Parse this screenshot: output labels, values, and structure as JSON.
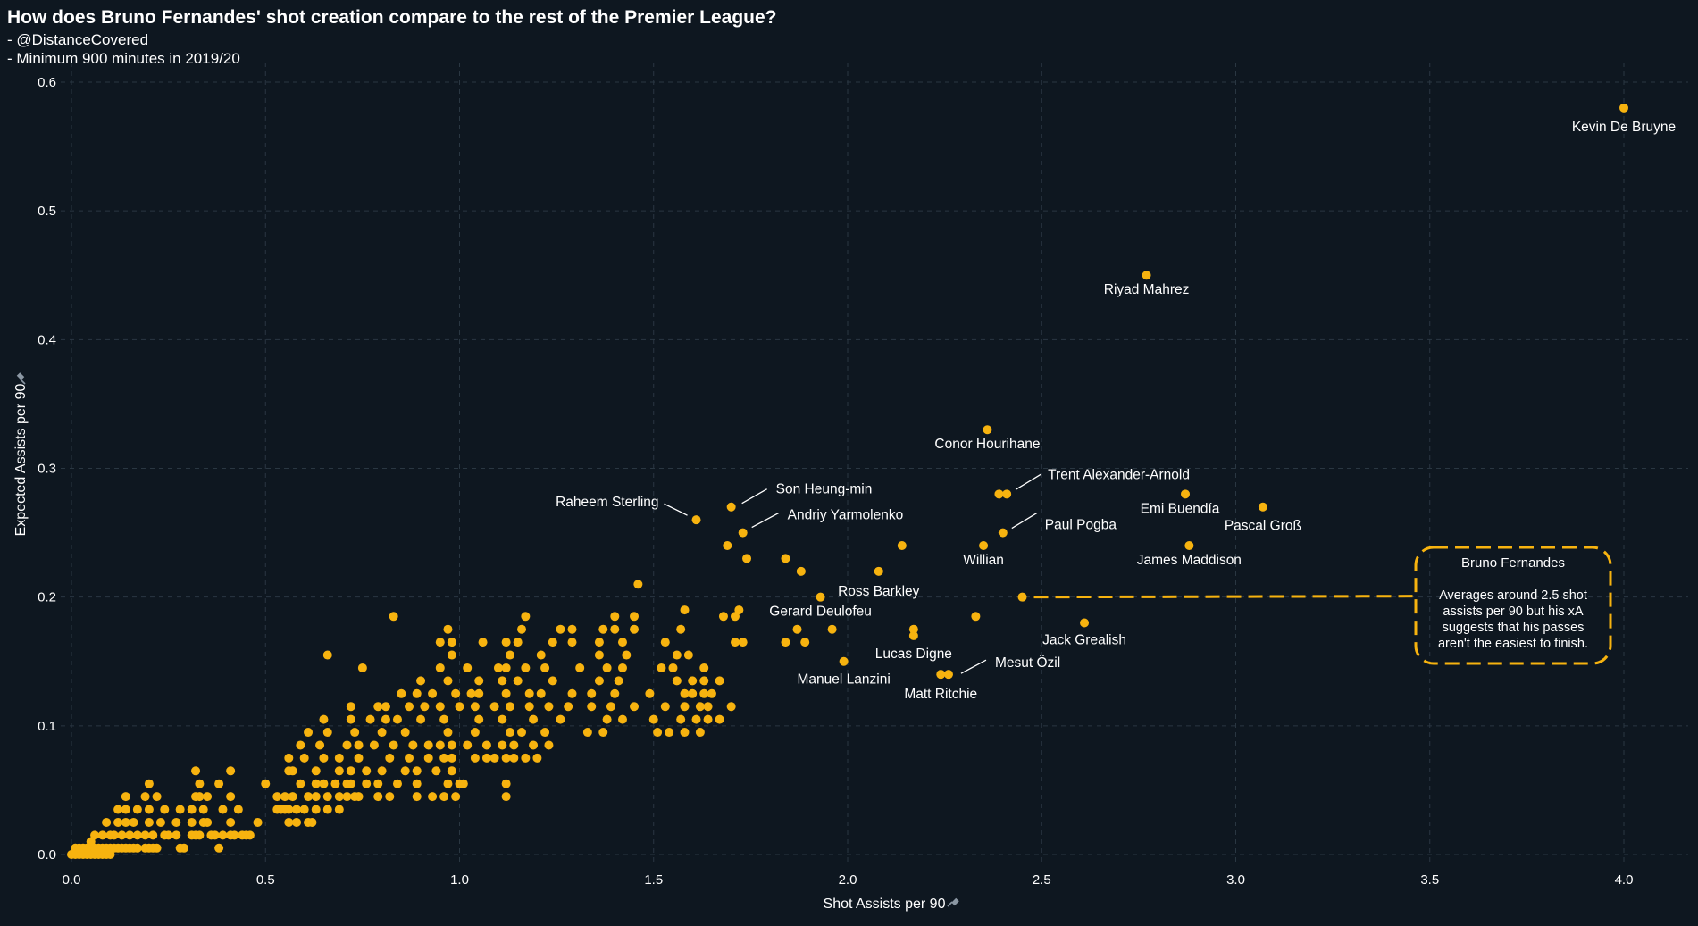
{
  "header": {
    "title": "How does Bruno Fernandes' shot creation compare to the rest of the Premier League?",
    "subtitle_1": "- @DistanceCovered",
    "subtitle_2": "- Minimum 900 minutes in 2019/20"
  },
  "colors": {
    "background": "#0e1720",
    "point": "#f7b30f",
    "grid": "#2a3742",
    "annotation": "#f7b30f",
    "text": "#ffffff"
  },
  "chart_data": {
    "type": "scatter",
    "title": "How does Bruno Fernandes' shot creation compare to the rest of the Premier League?",
    "xlabel": "Shot Assists per 90",
    "ylabel": "Expected Assists per 90",
    "xlim": [
      -0.03,
      4.2
    ],
    "ylim": [
      -0.01,
      0.62
    ],
    "x_ticks": [
      0.0,
      0.5,
      1.0,
      1.5,
      2.0,
      2.5,
      3.0,
      3.5,
      4.0
    ],
    "x_tick_labels": [
      "0.0",
      "0.5",
      "1.0",
      "1.5",
      "2.0",
      "2.5",
      "3.0",
      "3.5",
      "4.0"
    ],
    "y_ticks": [
      0.0,
      0.1,
      0.2,
      0.3,
      0.4,
      0.5,
      0.6
    ],
    "y_tick_labels": [
      "0.0",
      "0.1",
      "0.2",
      "0.3",
      "0.4",
      "0.5",
      "0.6"
    ],
    "grid": true,
    "labeled_points": [
      {
        "name": "Kevin De Bruyne",
        "x": 4.0,
        "y": 0.58
      },
      {
        "name": "Riyad Mahrez",
        "x": 2.77,
        "y": 0.45
      },
      {
        "name": "Conor Hourihane",
        "x": 2.36,
        "y": 0.33
      },
      {
        "name": "Trent Alexander-Arnold",
        "x": 2.41,
        "y": 0.28
      },
      {
        "name": "Paul Pogba",
        "x": 2.4,
        "y": 0.25
      },
      {
        "name": "Willian",
        "x": 2.35,
        "y": 0.24
      },
      {
        "name": "Emi Buendía",
        "x": 2.87,
        "y": 0.28
      },
      {
        "name": "Pascal Groß",
        "x": 3.07,
        "y": 0.27
      },
      {
        "name": "James Maddison",
        "x": 2.88,
        "y": 0.24
      },
      {
        "name": "Bruno Fernandes",
        "x": 2.45,
        "y": 0.2
      },
      {
        "name": "Jack Grealish",
        "x": 2.61,
        "y": 0.18
      },
      {
        "name": "Son Heung-min",
        "x": 1.7,
        "y": 0.27
      },
      {
        "name": "Andriy Yarmolenko",
        "x": 1.73,
        "y": 0.25
      },
      {
        "name": "Raheem Sterling",
        "x": 1.61,
        "y": 0.26
      },
      {
        "name": "Ross Barkley",
        "x": 2.08,
        "y": 0.22
      },
      {
        "name": "Gerard Deulofeu",
        "x": 1.93,
        "y": 0.2
      },
      {
        "name": "Lucas Digne",
        "x": 2.17,
        "y": 0.17
      },
      {
        "name": "Manuel Lanzini",
        "x": 1.99,
        "y": 0.15
      },
      {
        "name": "Mesut Özil",
        "x": 2.26,
        "y": 0.14
      },
      {
        "name": "Matt Ritchie",
        "x": 2.24,
        "y": 0.14
      }
    ],
    "other_points": [
      [
        0.0,
        0.0
      ],
      [
        0.01,
        0.0
      ],
      [
        0.02,
        0.0
      ],
      [
        0.03,
        0.0
      ],
      [
        0.04,
        0.0
      ],
      [
        0.05,
        0.0
      ],
      [
        0.06,
        0.0
      ],
      [
        0.07,
        0.0
      ],
      [
        0.08,
        0.0
      ],
      [
        0.09,
        0.0
      ],
      [
        0.1,
        0.0
      ],
      [
        0.01,
        0.005
      ],
      [
        0.02,
        0.005
      ],
      [
        0.03,
        0.005
      ],
      [
        0.04,
        0.005
      ],
      [
        0.06,
        0.005
      ],
      [
        0.07,
        0.005
      ],
      [
        0.08,
        0.005
      ],
      [
        0.09,
        0.005
      ],
      [
        0.1,
        0.005
      ],
      [
        0.11,
        0.005
      ],
      [
        0.12,
        0.005
      ],
      [
        0.13,
        0.005
      ],
      [
        0.14,
        0.005
      ],
      [
        0.15,
        0.005
      ],
      [
        0.16,
        0.005
      ],
      [
        0.17,
        0.005
      ],
      [
        0.19,
        0.005
      ],
      [
        0.2,
        0.005
      ],
      [
        0.21,
        0.005
      ],
      [
        0.22,
        0.005
      ],
      [
        0.28,
        0.005
      ],
      [
        0.29,
        0.005
      ],
      [
        0.38,
        0.005
      ],
      [
        0.05,
        0.01
      ],
      [
        0.06,
        0.015
      ],
      [
        0.08,
        0.015
      ],
      [
        0.1,
        0.015
      ],
      [
        0.11,
        0.015
      ],
      [
        0.13,
        0.015
      ],
      [
        0.15,
        0.015
      ],
      [
        0.17,
        0.015
      ],
      [
        0.19,
        0.015
      ],
      [
        0.21,
        0.015
      ],
      [
        0.24,
        0.015
      ],
      [
        0.25,
        0.015
      ],
      [
        0.27,
        0.015
      ],
      [
        0.31,
        0.015
      ],
      [
        0.32,
        0.015
      ],
      [
        0.33,
        0.015
      ],
      [
        0.36,
        0.015
      ],
      [
        0.37,
        0.015
      ],
      [
        0.39,
        0.015
      ],
      [
        0.41,
        0.015
      ],
      [
        0.42,
        0.015
      ],
      [
        0.44,
        0.015
      ],
      [
        0.45,
        0.015
      ],
      [
        0.46,
        0.015
      ],
      [
        0.09,
        0.025
      ],
      [
        0.12,
        0.025
      ],
      [
        0.14,
        0.025
      ],
      [
        0.16,
        0.025
      ],
      [
        0.2,
        0.025
      ],
      [
        0.23,
        0.025
      ],
      [
        0.27,
        0.025
      ],
      [
        0.31,
        0.025
      ],
      [
        0.34,
        0.025
      ],
      [
        0.35,
        0.025
      ],
      [
        0.41,
        0.025
      ],
      [
        0.48,
        0.025
      ],
      [
        0.56,
        0.025
      ],
      [
        0.58,
        0.025
      ],
      [
        0.61,
        0.025
      ],
      [
        0.62,
        0.025
      ],
      [
        0.12,
        0.035
      ],
      [
        0.14,
        0.035
      ],
      [
        0.17,
        0.035
      ],
      [
        0.2,
        0.035
      ],
      [
        0.24,
        0.035
      ],
      [
        0.28,
        0.035
      ],
      [
        0.31,
        0.035
      ],
      [
        0.34,
        0.035
      ],
      [
        0.39,
        0.035
      ],
      [
        0.43,
        0.035
      ],
      [
        0.53,
        0.035
      ],
      [
        0.54,
        0.035
      ],
      [
        0.55,
        0.035
      ],
      [
        0.56,
        0.035
      ],
      [
        0.58,
        0.035
      ],
      [
        0.6,
        0.035
      ],
      [
        0.63,
        0.035
      ],
      [
        0.66,
        0.035
      ],
      [
        0.69,
        0.035
      ],
      [
        0.14,
        0.045
      ],
      [
        0.19,
        0.045
      ],
      [
        0.22,
        0.045
      ],
      [
        0.32,
        0.045
      ],
      [
        0.33,
        0.045
      ],
      [
        0.35,
        0.045
      ],
      [
        0.41,
        0.045
      ],
      [
        0.53,
        0.045
      ],
      [
        0.55,
        0.045
      ],
      [
        0.57,
        0.045
      ],
      [
        0.61,
        0.045
      ],
      [
        0.63,
        0.045
      ],
      [
        0.66,
        0.045
      ],
      [
        0.69,
        0.045
      ],
      [
        0.71,
        0.045
      ],
      [
        0.73,
        0.045
      ],
      [
        0.74,
        0.045
      ],
      [
        0.79,
        0.045
      ],
      [
        0.82,
        0.045
      ],
      [
        0.89,
        0.045
      ],
      [
        0.93,
        0.045
      ],
      [
        0.96,
        0.045
      ],
      [
        0.99,
        0.045
      ],
      [
        1.12,
        0.045
      ],
      [
        0.2,
        0.055
      ],
      [
        0.33,
        0.055
      ],
      [
        0.38,
        0.055
      ],
      [
        0.5,
        0.055
      ],
      [
        0.59,
        0.055
      ],
      [
        0.63,
        0.055
      ],
      [
        0.65,
        0.055
      ],
      [
        0.68,
        0.055
      ],
      [
        0.71,
        0.055
      ],
      [
        0.72,
        0.055
      ],
      [
        0.76,
        0.055
      ],
      [
        0.79,
        0.055
      ],
      [
        0.84,
        0.055
      ],
      [
        0.89,
        0.055
      ],
      [
        0.97,
        0.055
      ],
      [
        1.0,
        0.055
      ],
      [
        1.01,
        0.055
      ],
      [
        1.12,
        0.055
      ],
      [
        0.32,
        0.065
      ],
      [
        0.41,
        0.065
      ],
      [
        0.56,
        0.065
      ],
      [
        0.57,
        0.065
      ],
      [
        0.63,
        0.065
      ],
      [
        0.69,
        0.065
      ],
      [
        0.72,
        0.065
      ],
      [
        0.76,
        0.065
      ],
      [
        0.8,
        0.065
      ],
      [
        0.86,
        0.065
      ],
      [
        0.89,
        0.065
      ],
      [
        0.94,
        0.065
      ],
      [
        0.98,
        0.065
      ],
      [
        0.56,
        0.075
      ],
      [
        0.6,
        0.075
      ],
      [
        0.65,
        0.075
      ],
      [
        0.69,
        0.075
      ],
      [
        0.74,
        0.075
      ],
      [
        0.82,
        0.075
      ],
      [
        0.87,
        0.075
      ],
      [
        0.92,
        0.075
      ],
      [
        0.96,
        0.075
      ],
      [
        0.98,
        0.075
      ],
      [
        1.04,
        0.075
      ],
      [
        1.07,
        0.075
      ],
      [
        1.09,
        0.075
      ],
      [
        1.12,
        0.075
      ],
      [
        1.14,
        0.075
      ],
      [
        1.17,
        0.075
      ],
      [
        1.2,
        0.075
      ],
      [
        0.59,
        0.085
      ],
      [
        0.64,
        0.085
      ],
      [
        0.71,
        0.085
      ],
      [
        0.74,
        0.085
      ],
      [
        0.78,
        0.085
      ],
      [
        0.83,
        0.085
      ],
      [
        0.88,
        0.085
      ],
      [
        0.92,
        0.085
      ],
      [
        0.95,
        0.085
      ],
      [
        0.98,
        0.085
      ],
      [
        1.02,
        0.085
      ],
      [
        1.07,
        0.085
      ],
      [
        1.11,
        0.085
      ],
      [
        1.14,
        0.085
      ],
      [
        1.19,
        0.085
      ],
      [
        1.23,
        0.085
      ],
      [
        0.61,
        0.095
      ],
      [
        0.66,
        0.095
      ],
      [
        0.73,
        0.095
      ],
      [
        0.8,
        0.095
      ],
      [
        0.86,
        0.095
      ],
      [
        0.97,
        0.095
      ],
      [
        1.04,
        0.095
      ],
      [
        1.13,
        0.095
      ],
      [
        1.16,
        0.095
      ],
      [
        1.22,
        0.095
      ],
      [
        1.33,
        0.095
      ],
      [
        1.37,
        0.095
      ],
      [
        1.51,
        0.095
      ],
      [
        1.54,
        0.095
      ],
      [
        1.58,
        0.095
      ],
      [
        1.62,
        0.095
      ],
      [
        0.65,
        0.105
      ],
      [
        0.72,
        0.105
      ],
      [
        0.77,
        0.105
      ],
      [
        0.81,
        0.105
      ],
      [
        0.84,
        0.105
      ],
      [
        0.9,
        0.105
      ],
      [
        0.96,
        0.105
      ],
      [
        1.05,
        0.105
      ],
      [
        1.11,
        0.105
      ],
      [
        1.19,
        0.105
      ],
      [
        1.26,
        0.105
      ],
      [
        1.38,
        0.105
      ],
      [
        1.42,
        0.105
      ],
      [
        1.5,
        0.105
      ],
      [
        1.57,
        0.105
      ],
      [
        1.61,
        0.105
      ],
      [
        1.64,
        0.105
      ],
      [
        1.67,
        0.105
      ],
      [
        0.72,
        0.115
      ],
      [
        0.79,
        0.115
      ],
      [
        0.81,
        0.115
      ],
      [
        0.87,
        0.115
      ],
      [
        0.91,
        0.115
      ],
      [
        0.95,
        0.115
      ],
      [
        1.0,
        0.115
      ],
      [
        1.04,
        0.115
      ],
      [
        1.09,
        0.115
      ],
      [
        1.13,
        0.115
      ],
      [
        1.18,
        0.115
      ],
      [
        1.23,
        0.115
      ],
      [
        1.28,
        0.115
      ],
      [
        1.34,
        0.115
      ],
      [
        1.39,
        0.115
      ],
      [
        1.45,
        0.115
      ],
      [
        1.53,
        0.115
      ],
      [
        1.58,
        0.115
      ],
      [
        1.62,
        0.115
      ],
      [
        1.64,
        0.115
      ],
      [
        1.7,
        0.115
      ],
      [
        0.85,
        0.125
      ],
      [
        0.89,
        0.125
      ],
      [
        0.93,
        0.125
      ],
      [
        0.99,
        0.125
      ],
      [
        1.03,
        0.125
      ],
      [
        1.05,
        0.125
      ],
      [
        1.12,
        0.125
      ],
      [
        1.18,
        0.125
      ],
      [
        1.21,
        0.125
      ],
      [
        1.29,
        0.125
      ],
      [
        1.34,
        0.125
      ],
      [
        1.4,
        0.125
      ],
      [
        1.49,
        0.125
      ],
      [
        1.58,
        0.125
      ],
      [
        1.6,
        0.125
      ],
      [
        1.63,
        0.125
      ],
      [
        1.65,
        0.125
      ],
      [
        0.9,
        0.135
      ],
      [
        0.97,
        0.135
      ],
      [
        1.05,
        0.135
      ],
      [
        1.11,
        0.135
      ],
      [
        1.15,
        0.135
      ],
      [
        1.24,
        0.135
      ],
      [
        1.36,
        0.135
      ],
      [
        1.41,
        0.135
      ],
      [
        1.56,
        0.135
      ],
      [
        1.6,
        0.135
      ],
      [
        1.63,
        0.135
      ],
      [
        1.67,
        0.135
      ],
      [
        0.75,
        0.145
      ],
      [
        0.95,
        0.145
      ],
      [
        1.02,
        0.145
      ],
      [
        1.1,
        0.145
      ],
      [
        1.12,
        0.145
      ],
      [
        1.17,
        0.145
      ],
      [
        1.22,
        0.145
      ],
      [
        1.31,
        0.145
      ],
      [
        1.38,
        0.145
      ],
      [
        1.42,
        0.145
      ],
      [
        1.52,
        0.145
      ],
      [
        1.55,
        0.145
      ],
      [
        1.63,
        0.145
      ],
      [
        0.66,
        0.155
      ],
      [
        0.98,
        0.155
      ],
      [
        1.13,
        0.155
      ],
      [
        1.21,
        0.155
      ],
      [
        1.36,
        0.155
      ],
      [
        1.43,
        0.155
      ],
      [
        1.56,
        0.155
      ],
      [
        1.59,
        0.155
      ],
      [
        0.95,
        0.165
      ],
      [
        0.98,
        0.165
      ],
      [
        1.06,
        0.165
      ],
      [
        1.12,
        0.165
      ],
      [
        1.15,
        0.165
      ],
      [
        1.24,
        0.165
      ],
      [
        1.29,
        0.165
      ],
      [
        1.36,
        0.165
      ],
      [
        1.42,
        0.165
      ],
      [
        1.53,
        0.165
      ],
      [
        1.71,
        0.165
      ],
      [
        1.73,
        0.165
      ],
      [
        1.84,
        0.165
      ],
      [
        1.89,
        0.165
      ],
      [
        0.97,
        0.175
      ],
      [
        1.16,
        0.175
      ],
      [
        1.26,
        0.175
      ],
      [
        1.29,
        0.175
      ],
      [
        1.37,
        0.175
      ],
      [
        1.4,
        0.175
      ],
      [
        1.45,
        0.175
      ],
      [
        1.57,
        0.175
      ],
      [
        1.87,
        0.175
      ],
      [
        1.96,
        0.175
      ],
      [
        2.17,
        0.175
      ],
      [
        0.83,
        0.185
      ],
      [
        1.17,
        0.185
      ],
      [
        1.4,
        0.185
      ],
      [
        1.45,
        0.185
      ],
      [
        1.68,
        0.185
      ],
      [
        1.71,
        0.185
      ],
      [
        2.33,
        0.185
      ],
      [
        1.58,
        0.19
      ],
      [
        1.72,
        0.19
      ],
      [
        1.46,
        0.21
      ],
      [
        1.69,
        0.24
      ],
      [
        1.74,
        0.23
      ],
      [
        1.84,
        0.23
      ],
      [
        1.88,
        0.22
      ],
      [
        2.14,
        0.24
      ],
      [
        2.39,
        0.28
      ]
    ],
    "annotation": {
      "title": "Bruno Fernandes",
      "lines": [
        "Averages around 2.5 shot",
        "assists per 90 but his xA",
        "suggests that his passes",
        "aren't the easiest to finish."
      ]
    }
  }
}
